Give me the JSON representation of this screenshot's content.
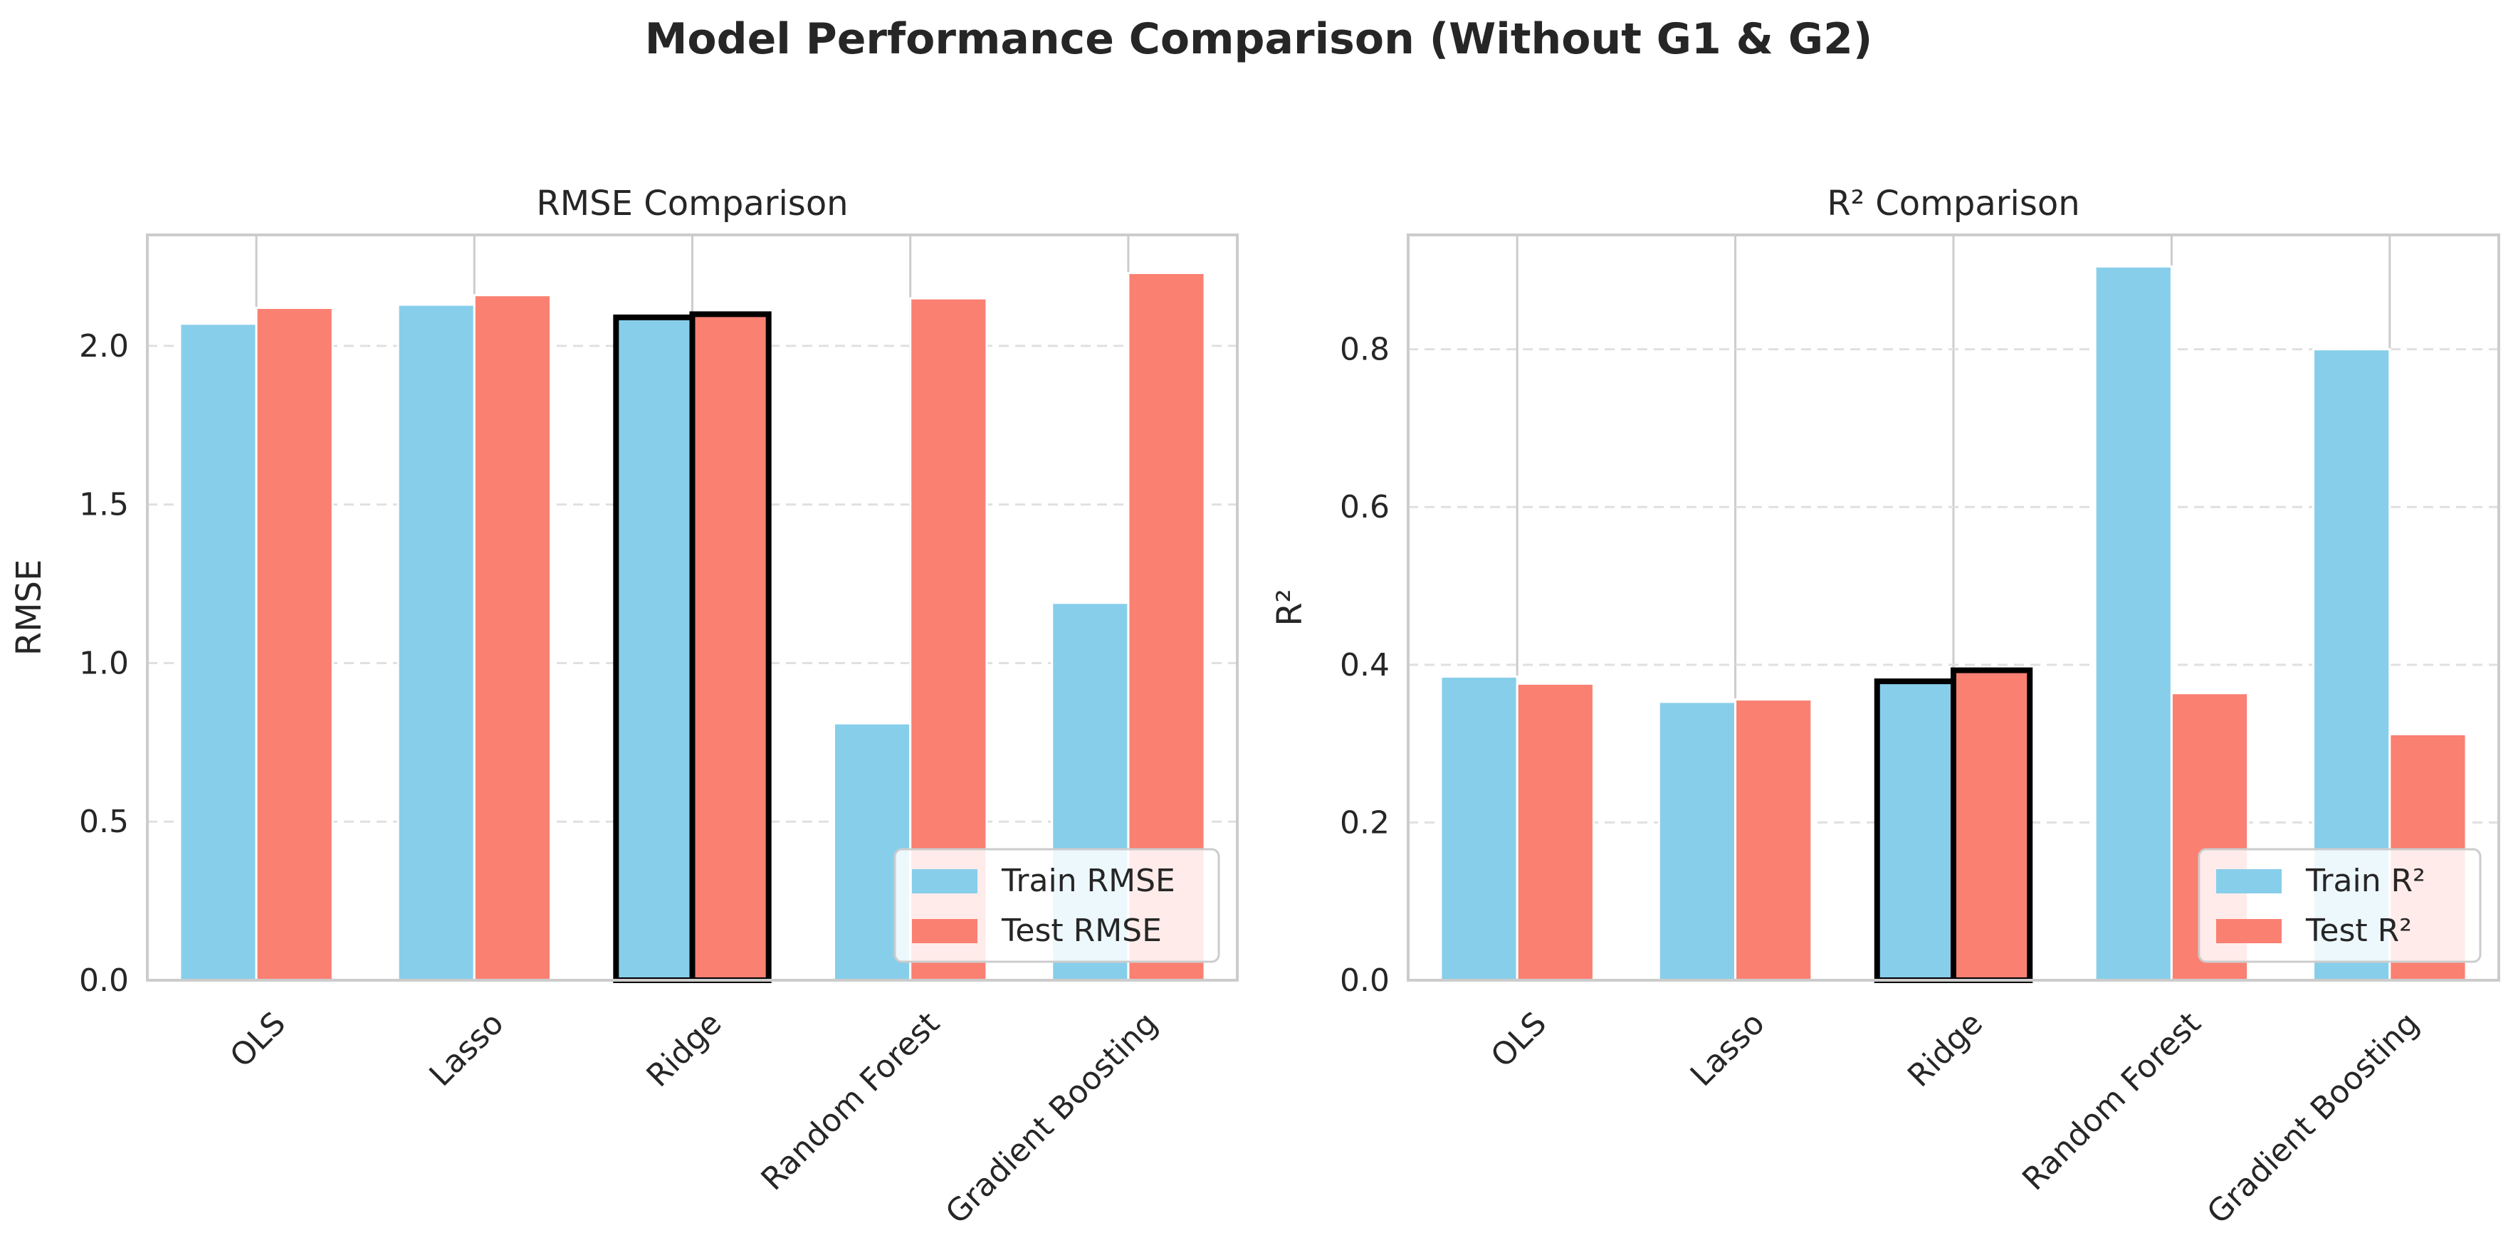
{
  "suptitle": "Model Performance Comparison (Without G1 & G2)",
  "colors": {
    "train": "#87CEEB",
    "test": "#FA8072",
    "highlight": "#000000",
    "grid": "#E0E0E0",
    "spine": "#CCCCCC"
  },
  "chart_data": [
    {
      "type": "bar",
      "title": "RMSE Comparison",
      "xlabel": "",
      "ylabel": "RMSE",
      "ylim": [
        0,
        2.35
      ],
      "yticks": [
        "0.0",
        "0.5",
        "1.0",
        "1.5",
        "2.0"
      ],
      "ytick_values": [
        0,
        0.5,
        1.0,
        1.5,
        2.0
      ],
      "categories": [
        "OLS",
        "Lasso",
        "Ridge",
        "Random Forest",
        "Gradient Boosting"
      ],
      "highlight_category": "Ridge",
      "series": [
        {
          "name": "Train RMSE",
          "values": [
            2.07,
            2.13,
            2.09,
            0.81,
            1.19
          ]
        },
        {
          "name": "Test RMSE",
          "values": [
            2.12,
            2.16,
            2.1,
            2.15,
            2.23
          ]
        }
      ],
      "grid": "y-dashed",
      "legend_position": "lower-right"
    },
    {
      "type": "bar",
      "title": "R² Comparison",
      "xlabel": "",
      "ylabel": "R²",
      "ylim": [
        0,
        0.945
      ],
      "yticks": [
        "0.0",
        "0.2",
        "0.4",
        "0.6",
        "0.8"
      ],
      "ytick_values": [
        0,
        0.2,
        0.4,
        0.6,
        0.8
      ],
      "categories": [
        "OLS",
        "Lasso",
        "Ridge",
        "Random Forest",
        "Gradient Boosting"
      ],
      "highlight_category": "Ridge",
      "series": [
        {
          "name": "Train R²",
          "values": [
            0.385,
            0.353,
            0.379,
            0.905,
            0.8
          ]
        },
        {
          "name": "Test R²",
          "values": [
            0.376,
            0.356,
            0.393,
            0.364,
            0.312
          ]
        }
      ],
      "grid": "y-dashed",
      "legend_position": "lower-right"
    }
  ]
}
